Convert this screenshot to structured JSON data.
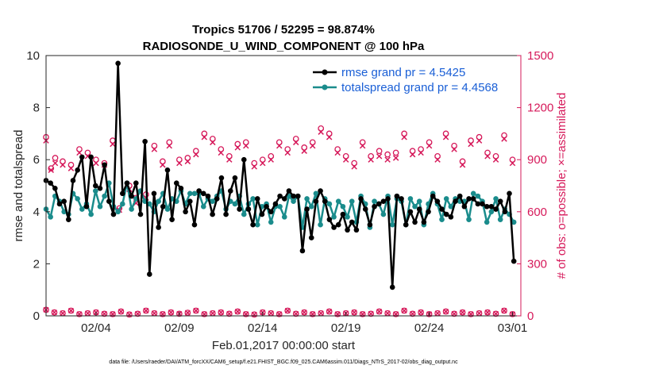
{
  "chart_data": {
    "type": "line",
    "title_line1": "Tropics 51706 / 52295 = 98.874%",
    "title_line2": "RADIOSONDE_U_WIND_COMPONENT @ 100 hPa",
    "xlabel": "Feb.01,2017 00:00:00 start",
    "ylabel_left": "rmse and totalspread",
    "ylabel_right": "# of obs: o=possible; ×=assimilated",
    "x_range": [
      0.0,
      28.5
    ],
    "ylim_left": [
      0,
      10
    ],
    "ylim_right": [
      0,
      1500
    ],
    "left_ticks": [
      0,
      2,
      4,
      6,
      8,
      10
    ],
    "right_ticks": [
      0,
      300,
      600,
      900,
      1200,
      1500
    ],
    "x_ticks": [
      {
        "value": 3.0,
        "label": "02/04"
      },
      {
        "value": 8.0,
        "label": "02/09"
      },
      {
        "value": 13.0,
        "label": "02/14"
      },
      {
        "value": 18.0,
        "label": "02/19"
      },
      {
        "value": 23.0,
        "label": "02/24"
      },
      {
        "value": 28.0,
        "label": "03/01"
      }
    ],
    "colors": {
      "rmse": "#000000",
      "spread": "#1a8c8c",
      "obs": "#d6195a",
      "legend_text": "#1a5fd6"
    },
    "series": [
      {
        "name": "rmse grand pr = 4.5425",
        "values": [
          5.2,
          5.1,
          4.9,
          4.3,
          4.4,
          3.7,
          5.2,
          5.6,
          6.1,
          4.2,
          6.1,
          5.0,
          4.9,
          5.8,
          4.4,
          3.9,
          9.7,
          4.7,
          5.1,
          4.6,
          5.1,
          3.9,
          6.7,
          1.6,
          4.7,
          3.4,
          4.2,
          5.6,
          3.7,
          5.1,
          4.9,
          4.0,
          4.4,
          3.5,
          4.8,
          4.7,
          4.6,
          3.9,
          4.5,
          5.3,
          3.9,
          4.8,
          5.3,
          4.1,
          6.0,
          4.1,
          3.5,
          4.5,
          3.9,
          4.2,
          4.0,
          4.3,
          4.6,
          4.5,
          4.8,
          4.6,
          4.6,
          2.5,
          4.1,
          3.0,
          4.4,
          4.8,
          4.4,
          3.7,
          3.4,
          3.5,
          3.9,
          3.3,
          3.6,
          3.3,
          4.5,
          4.1,
          3.5,
          4.2,
          4.3,
          4.4,
          4.5,
          1.1,
          4.6,
          4.5,
          3.5,
          4.0,
          3.6,
          4.1,
          3.6,
          4.0,
          4.6,
          4.4,
          4.1,
          3.9,
          3.8,
          4.4,
          4.6,
          4.2,
          4.5,
          4.5,
          4.3,
          4.3,
          4.2,
          4.2,
          4.1,
          4.4,
          4.0,
          4.7,
          2.1
        ],
        "spacing_days": 0.27
      },
      {
        "name": "totalspread grand pr = 4.4568",
        "values": [
          4.1,
          3.8,
          4.6,
          4.4,
          4.0,
          3.9,
          4.7,
          4.5,
          4.1,
          4.3,
          3.9,
          4.8,
          4.2,
          4.6,
          5.1,
          4.2,
          4.0,
          4.3,
          5.1,
          4.1,
          4.5,
          4.8,
          4.4,
          4.3,
          4.0,
          4.4,
          4.7,
          4.1,
          4.5,
          4.4,
          4.8,
          4.3,
          4.7,
          4.7,
          4.7,
          4.2,
          4.5,
          4.4,
          4.6,
          4.8,
          4.1,
          4.4,
          4.3,
          4.6,
          3.9,
          4.3,
          4.5,
          3.5,
          4.2,
          4.3,
          3.6,
          4.2,
          4.2,
          3.8,
          4.6,
          4.4,
          4.6,
          3.4,
          4.5,
          4.2,
          4.7,
          3.5,
          4.5,
          4.3,
          3.8,
          4.4,
          4.2,
          3.8,
          4.4,
          3.6,
          4.6,
          4.3,
          3.4,
          4.4,
          4.3,
          3.9,
          4.6,
          3.5,
          4.5,
          4.4,
          3.5,
          4.5,
          4.2,
          4.4,
          3.5,
          4.3,
          4.7,
          4.3,
          3.7,
          4.5,
          4.2,
          4.5,
          4.4,
          4.4,
          3.7,
          4.7,
          4.6,
          4.4,
          3.6,
          4.0,
          4.5,
          3.7,
          4.1,
          3.9,
          3.6
        ],
        "spacing_days": 0.27
      }
    ],
    "obs_possible": [
      {
        "day": 0.0,
        "value": 1030
      },
      {
        "day": 0.3,
        "value": 850
      },
      {
        "day": 0.55,
        "value": 910
      },
      {
        "day": 1.0,
        "value": 890
      },
      {
        "day": 1.5,
        "value": 870
      },
      {
        "day": 2.0,
        "value": 960
      },
      {
        "day": 2.5,
        "value": 940
      },
      {
        "day": 3.0,
        "value": 900
      },
      {
        "day": 3.5,
        "value": 880
      },
      {
        "day": 4.0,
        "value": 1010
      },
      {
        "day": 4.4,
        "value": 620
      },
      {
        "day": 5.0,
        "value": 750
      },
      {
        "day": 5.4,
        "value": 680
      },
      {
        "day": 6.0,
        "value": 700
      },
      {
        "day": 6.5,
        "value": 980
      },
      {
        "day": 7.0,
        "value": 890
      },
      {
        "day": 7.4,
        "value": 1000
      },
      {
        "day": 8.0,
        "value": 900
      },
      {
        "day": 8.5,
        "value": 910
      },
      {
        "day": 9.0,
        "value": 950
      },
      {
        "day": 9.5,
        "value": 1050
      },
      {
        "day": 10.0,
        "value": 1020
      },
      {
        "day": 10.5,
        "value": 960
      },
      {
        "day": 11.0,
        "value": 920
      },
      {
        "day": 11.5,
        "value": 990
      },
      {
        "day": 12.0,
        "value": 1000
      },
      {
        "day": 12.5,
        "value": 880
      },
      {
        "day": 13.0,
        "value": 900
      },
      {
        "day": 13.5,
        "value": 920
      },
      {
        "day": 14.0,
        "value": 1000
      },
      {
        "day": 14.5,
        "value": 960
      },
      {
        "day": 15.0,
        "value": 1020
      },
      {
        "day": 15.5,
        "value": 970
      },
      {
        "day": 16.0,
        "value": 1000
      },
      {
        "day": 16.5,
        "value": 1080
      },
      {
        "day": 17.0,
        "value": 1050
      },
      {
        "day": 17.5,
        "value": 960
      },
      {
        "day": 18.0,
        "value": 920
      },
      {
        "day": 18.5,
        "value": 880
      },
      {
        "day": 19.0,
        "value": 1000
      },
      {
        "day": 19.5,
        "value": 920
      },
      {
        "day": 20.0,
        "value": 950
      },
      {
        "day": 20.5,
        "value": 930
      },
      {
        "day": 21.0,
        "value": 940
      },
      {
        "day": 21.5,
        "value": 1050
      },
      {
        "day": 22.0,
        "value": 950
      },
      {
        "day": 22.5,
        "value": 960
      },
      {
        "day": 23.0,
        "value": 1000
      },
      {
        "day": 23.5,
        "value": 920
      },
      {
        "day": 24.0,
        "value": 1050
      },
      {
        "day": 24.5,
        "value": 980
      },
      {
        "day": 25.0,
        "value": 890
      },
      {
        "day": 25.5,
        "value": 1010
      },
      {
        "day": 26.0,
        "value": 1030
      },
      {
        "day": 26.5,
        "value": 940
      },
      {
        "day": 27.0,
        "value": 920
      },
      {
        "day": 27.5,
        "value": 1040
      },
      {
        "day": 28.0,
        "value": 900
      }
    ],
    "obs_assimilated": [
      {
        "day": 0.0,
        "value": 1010
      },
      {
        "day": 0.3,
        "value": 840
      },
      {
        "day": 0.55,
        "value": 880
      },
      {
        "day": 1.0,
        "value": 870
      },
      {
        "day": 1.5,
        "value": 850
      },
      {
        "day": 2.0,
        "value": 940
      },
      {
        "day": 2.5,
        "value": 920
      },
      {
        "day": 3.0,
        "value": 880
      },
      {
        "day": 3.5,
        "value": 870
      },
      {
        "day": 4.0,
        "value": 990
      },
      {
        "day": 4.4,
        "value": 610
      },
      {
        "day": 5.0,
        "value": 730
      },
      {
        "day": 5.4,
        "value": 650
      },
      {
        "day": 6.0,
        "value": 680
      },
      {
        "day": 6.5,
        "value": 960
      },
      {
        "day": 7.0,
        "value": 870
      },
      {
        "day": 7.4,
        "value": 980
      },
      {
        "day": 8.0,
        "value": 880
      },
      {
        "day": 8.5,
        "value": 890
      },
      {
        "day": 9.0,
        "value": 930
      },
      {
        "day": 9.5,
        "value": 1030
      },
      {
        "day": 10.0,
        "value": 1000
      },
      {
        "day": 10.5,
        "value": 940
      },
      {
        "day": 11.0,
        "value": 900
      },
      {
        "day": 11.5,
        "value": 970
      },
      {
        "day": 12.0,
        "value": 980
      },
      {
        "day": 12.5,
        "value": 860
      },
      {
        "day": 13.0,
        "value": 880
      },
      {
        "day": 13.5,
        "value": 900
      },
      {
        "day": 14.0,
        "value": 980
      },
      {
        "day": 14.5,
        "value": 940
      },
      {
        "day": 15.0,
        "value": 1000
      },
      {
        "day": 15.5,
        "value": 950
      },
      {
        "day": 16.0,
        "value": 980
      },
      {
        "day": 16.5,
        "value": 1060
      },
      {
        "day": 17.0,
        "value": 1030
      },
      {
        "day": 17.5,
        "value": 940
      },
      {
        "day": 18.0,
        "value": 900
      },
      {
        "day": 18.5,
        "value": 860
      },
      {
        "day": 19.0,
        "value": 980
      },
      {
        "day": 19.5,
        "value": 900
      },
      {
        "day": 20.0,
        "value": 920
      },
      {
        "day": 20.5,
        "value": 900
      },
      {
        "day": 21.0,
        "value": 910
      },
      {
        "day": 21.5,
        "value": 1030
      },
      {
        "day": 22.0,
        "value": 930
      },
      {
        "day": 22.5,
        "value": 940
      },
      {
        "day": 23.0,
        "value": 980
      },
      {
        "day": 23.5,
        "value": 900
      },
      {
        "day": 24.0,
        "value": 1030
      },
      {
        "day": 24.5,
        "value": 960
      },
      {
        "day": 25.0,
        "value": 870
      },
      {
        "day": 25.5,
        "value": 990
      },
      {
        "day": 26.0,
        "value": 1010
      },
      {
        "day": 26.5,
        "value": 920
      },
      {
        "day": 27.0,
        "value": 900
      },
      {
        "day": 27.5,
        "value": 1020
      },
      {
        "day": 28.0,
        "value": 880
      }
    ],
    "obs_low_possible": [
      {
        "day": 0.0,
        "value": 35
      },
      {
        "day": 0.5,
        "value": 20
      },
      {
        "day": 1.0,
        "value": 15
      },
      {
        "day": 1.5,
        "value": 30
      },
      {
        "day": 2.0,
        "value": 10
      },
      {
        "day": 2.5,
        "value": 15
      },
      {
        "day": 3.0,
        "value": 20
      },
      {
        "day": 3.5,
        "value": 12
      },
      {
        "day": 4.0,
        "value": 10
      },
      {
        "day": 4.5,
        "value": 25
      },
      {
        "day": 5.0,
        "value": 8
      },
      {
        "day": 5.5,
        "value": 12
      },
      {
        "day": 6.0,
        "value": 30
      },
      {
        "day": 6.5,
        "value": 15
      },
      {
        "day": 7.0,
        "value": 10
      },
      {
        "day": 7.5,
        "value": 20
      },
      {
        "day": 8.0,
        "value": 12
      },
      {
        "day": 8.5,
        "value": 18
      },
      {
        "day": 9.0,
        "value": 30
      },
      {
        "day": 9.5,
        "value": 10
      },
      {
        "day": 10.0,
        "value": 15
      },
      {
        "day": 10.5,
        "value": 20
      },
      {
        "day": 11.0,
        "value": 12
      },
      {
        "day": 11.5,
        "value": 25
      },
      {
        "day": 12.0,
        "value": 10
      },
      {
        "day": 12.5,
        "value": 8
      },
      {
        "day": 13.0,
        "value": 20
      },
      {
        "day": 13.5,
        "value": 15
      },
      {
        "day": 14.0,
        "value": 10
      },
      {
        "day": 14.5,
        "value": 30
      },
      {
        "day": 15.0,
        "value": 12
      },
      {
        "day": 15.5,
        "value": 20
      },
      {
        "day": 16.0,
        "value": 10
      },
      {
        "day": 16.5,
        "value": 15
      },
      {
        "day": 17.0,
        "value": 25
      },
      {
        "day": 17.5,
        "value": 10
      },
      {
        "day": 18.0,
        "value": 15
      },
      {
        "day": 18.5,
        "value": 20
      },
      {
        "day": 19.0,
        "value": 10
      },
      {
        "day": 19.5,
        "value": 12
      },
      {
        "day": 20.0,
        "value": 25
      },
      {
        "day": 20.5,
        "value": 15
      },
      {
        "day": 21.0,
        "value": 10
      },
      {
        "day": 21.5,
        "value": 30
      },
      {
        "day": 22.0,
        "value": 12
      },
      {
        "day": 22.5,
        "value": 20
      },
      {
        "day": 23.0,
        "value": 10
      },
      {
        "day": 23.5,
        "value": 15
      },
      {
        "day": 24.0,
        "value": 25
      },
      {
        "day": 24.5,
        "value": 12
      },
      {
        "day": 25.0,
        "value": 20
      },
      {
        "day": 25.5,
        "value": 10
      },
      {
        "day": 26.0,
        "value": 15
      },
      {
        "day": 26.5,
        "value": 20
      },
      {
        "day": 27.0,
        "value": 12
      },
      {
        "day": 27.5,
        "value": 30
      },
      {
        "day": 28.0,
        "value": 10
      }
    ],
    "legend_location": "top-right"
  },
  "footer": "data file: /Users/raeder/DAI/ATM_forcXX/CAM6_setup/f.e21.FHIST_BGC.f09_025.CAM6assim.011/Diags_NTrS_2017-02/obs_diag_output.nc"
}
